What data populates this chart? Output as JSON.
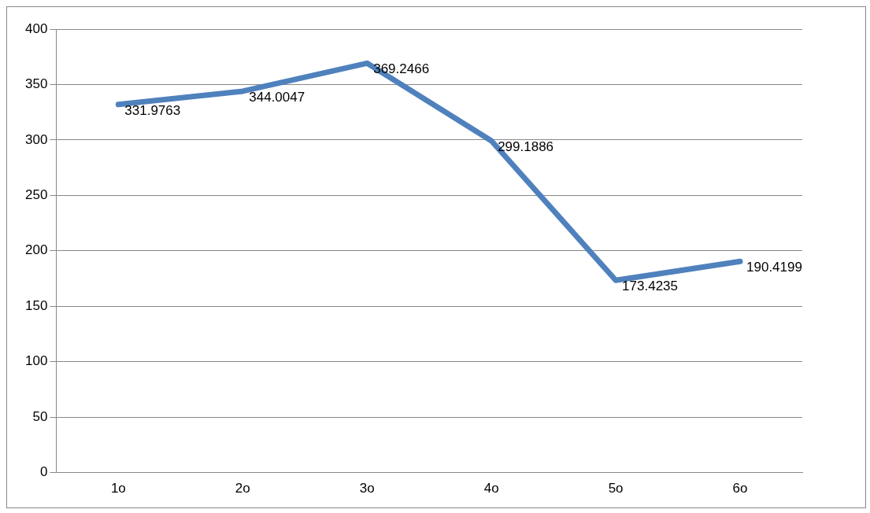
{
  "chart_data": {
    "type": "line",
    "categories": [
      "1o",
      "2o",
      "3o",
      "4o",
      "5o",
      "6o"
    ],
    "series": [
      {
        "color": "#4f81bd",
        "values": [
          331.9763,
          344.0047,
          369.2466,
          299.1886,
          173.4235,
          190.4199
        ]
      }
    ],
    "ylim": [
      0,
      400
    ],
    "yticks": [
      0,
      50,
      100,
      150,
      200,
      250,
      300,
      350,
      400
    ],
    "grid": "y",
    "data_labels": true,
    "marker": "none",
    "line_style": "solid",
    "legend": false
  }
}
